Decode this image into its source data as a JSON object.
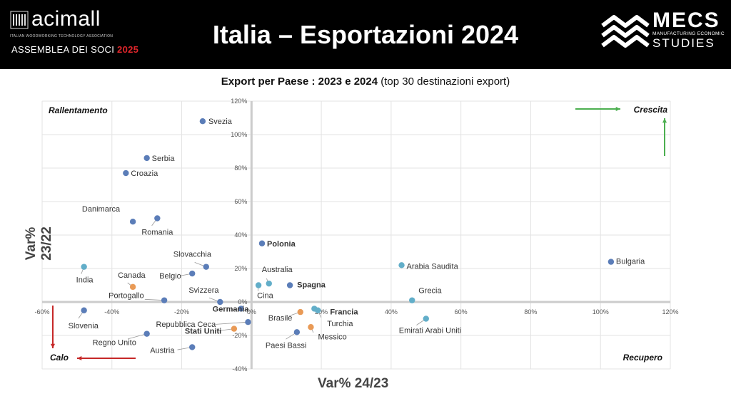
{
  "header": {
    "logo_left": {
      "name": "acimall",
      "tagline": "ITALIAN WOODWORKING TECHNOLOGY ASSOCIATION"
    },
    "assembly": {
      "text": "ASSEMBLEA DEI SOCI",
      "year": "2025"
    },
    "title": "Italia – Esportazioni 2024",
    "logo_right": {
      "name": "MECS",
      "tagline": "MANUFACTURING ECONOMIC",
      "word2": "STUDIES"
    }
  },
  "chart_title": {
    "bold": "Export per Paese : 2023 e 2024",
    "normal": "(top 30 destinazioni export)"
  },
  "colors": {
    "default": "#5b7db8",
    "light": "#62aec9",
    "orange": "#e99a56",
    "grid": "#e3e3e3",
    "axis": "#cccccc",
    "green": "#4caf50",
    "red": "#c62828"
  },
  "chart_data": {
    "type": "scatter",
    "xlabel": "Var% 24/23",
    "ylabel": "Var% 23/22",
    "xlim": [
      -60,
      120
    ],
    "ylim": [
      -40,
      120
    ],
    "x_ticks": [
      "-60%",
      "-40%",
      "-20%",
      "0%",
      "20%",
      "40%",
      "60%",
      "80%",
      "100%",
      "120%"
    ],
    "y_ticks": [
      "-40%",
      "-20%",
      "0%",
      "20%",
      "40%",
      "60%",
      "80%",
      "100%",
      "120%"
    ],
    "grid": true,
    "quadrants": {
      "top_left": "Rallentamento",
      "top_right": "Crescita",
      "bottom_left": "Calo",
      "bottom_right": "Recupero"
    },
    "points": [
      {
        "label": "Svezia",
        "x": -14,
        "y": 108,
        "color": "default",
        "bold": false
      },
      {
        "label": "Serbia",
        "x": -30,
        "y": 86,
        "color": "default",
        "bold": false
      },
      {
        "label": "Croazia",
        "x": -36,
        "y": 77,
        "color": "default",
        "bold": false
      },
      {
        "label": "Danimarca",
        "x": -34,
        "y": 48,
        "color": "default",
        "bold": false
      },
      {
        "label": "Romania",
        "x": -27,
        "y": 50,
        "color": "default",
        "bold": false
      },
      {
        "label": "Polonia",
        "x": 3,
        "y": 35,
        "color": "default",
        "bold": true
      },
      {
        "label": "Slovacchia",
        "x": -13,
        "y": 21,
        "color": "default",
        "bold": false
      },
      {
        "label": "Belgio",
        "x": -17,
        "y": 17,
        "color": "default",
        "bold": false
      },
      {
        "label": "India",
        "x": -48,
        "y": 21,
        "color": "light",
        "bold": false
      },
      {
        "label": "Canada",
        "x": -34,
        "y": 9,
        "color": "orange",
        "bold": false
      },
      {
        "label": "Portogallo",
        "x": -25,
        "y": 1,
        "color": "default",
        "bold": false
      },
      {
        "label": "Svizzera",
        "x": -9,
        "y": 0,
        "color": "default",
        "bold": false
      },
      {
        "label": "Germania",
        "x": -3,
        "y": -4,
        "color": "default",
        "bold": true
      },
      {
        "label": "Australia",
        "x": 5,
        "y": 11,
        "color": "light",
        "bold": false
      },
      {
        "label": "Cina",
        "x": 2,
        "y": 10,
        "color": "light",
        "bold": false
      },
      {
        "label": "Spagna",
        "x": 11,
        "y": 10,
        "color": "default",
        "bold": true
      },
      {
        "label": "Arabia Saudita",
        "x": 43,
        "y": 22,
        "color": "light",
        "bold": false
      },
      {
        "label": "Bulgaria",
        "x": 103,
        "y": 24,
        "color": "default",
        "bold": false
      },
      {
        "label": "Grecia",
        "x": 46,
        "y": 1,
        "color": "light",
        "bold": false
      },
      {
        "label": "Slovenia",
        "x": -48,
        "y": -5,
        "color": "default",
        "bold": false
      },
      {
        "label": "Regno Unito",
        "x": -30,
        "y": -19,
        "color": "default",
        "bold": false
      },
      {
        "label": "Austria",
        "x": -17,
        "y": -27,
        "color": "default",
        "bold": false
      },
      {
        "label": "Repubblica Ceca",
        "x": -1,
        "y": -12,
        "color": "default",
        "bold": false
      },
      {
        "label": "Stati Uniti",
        "x": -5,
        "y": -16,
        "color": "orange",
        "bold": true
      },
      {
        "label": "Brasile",
        "x": 14,
        "y": -6,
        "color": "orange",
        "bold": false
      },
      {
        "label": "Francia",
        "x": 18,
        "y": -4,
        "color": "light",
        "bold": true
      },
      {
        "label": "Turchia",
        "x": 19,
        "y": -5,
        "color": "light",
        "bold": false
      },
      {
        "label": "Messico",
        "x": 17,
        "y": -15,
        "color": "orange",
        "bold": false
      },
      {
        "label": "Paesi Bassi",
        "x": 13,
        "y": -18,
        "color": "default",
        "bold": false
      },
      {
        "label": "Emirati Arabi Uniti",
        "x": 50,
        "y": -10,
        "color": "light",
        "bold": false
      }
    ]
  }
}
